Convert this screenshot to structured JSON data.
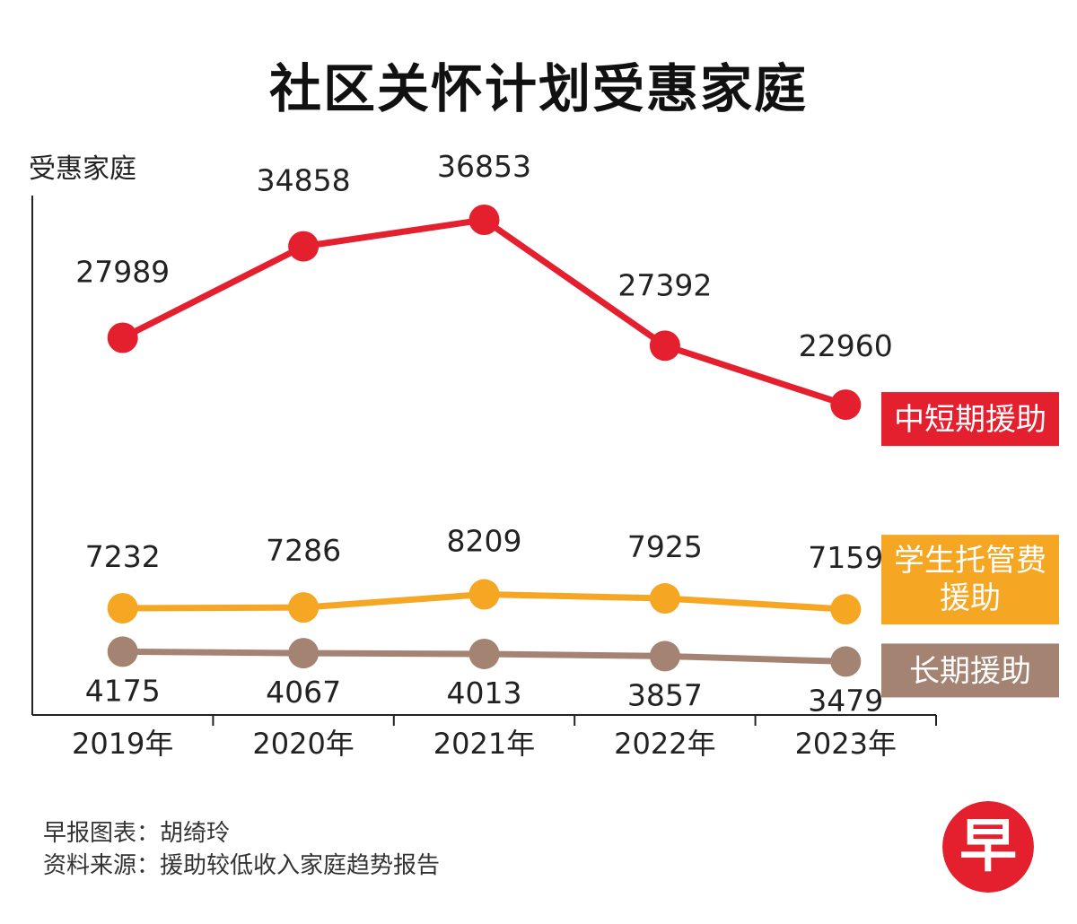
{
  "header": {
    "title": "社区关怀计划受惠家庭"
  },
  "chart_data": {
    "type": "line",
    "title": "社区关怀计划受惠家庭",
    "ylabel": "受惠家庭",
    "xlabel": "",
    "grid": false,
    "categories": [
      "2019年",
      "2020年",
      "2021年",
      "2022年",
      "2023年"
    ],
    "ylim": [
      0,
      40000
    ],
    "series": [
      {
        "name": "中短期援助",
        "label_lines": [
          "中短期援助"
        ],
        "color": "#e4202f",
        "values": [
          27989,
          34858,
          36853,
          27392,
          22960
        ]
      },
      {
        "name": "学生托管费援助",
        "label_lines": [
          "学生托管费",
          "援助"
        ],
        "color": "#f5a623",
        "values": [
          7232,
          7286,
          8209,
          7925,
          7159
        ]
      },
      {
        "name": "长期援助",
        "label_lines": [
          "长期援助"
        ],
        "color": "#a58372",
        "values": [
          4175,
          4067,
          4013,
          3857,
          3479
        ]
      }
    ]
  },
  "footer": {
    "credit_label": "早报图表：",
    "credit_name": "胡绮玲",
    "source_label": "资料来源：",
    "source_text": "援助较低收入家庭趋势报告"
  },
  "logo": {
    "char": "早",
    "color": "#e4202f"
  }
}
